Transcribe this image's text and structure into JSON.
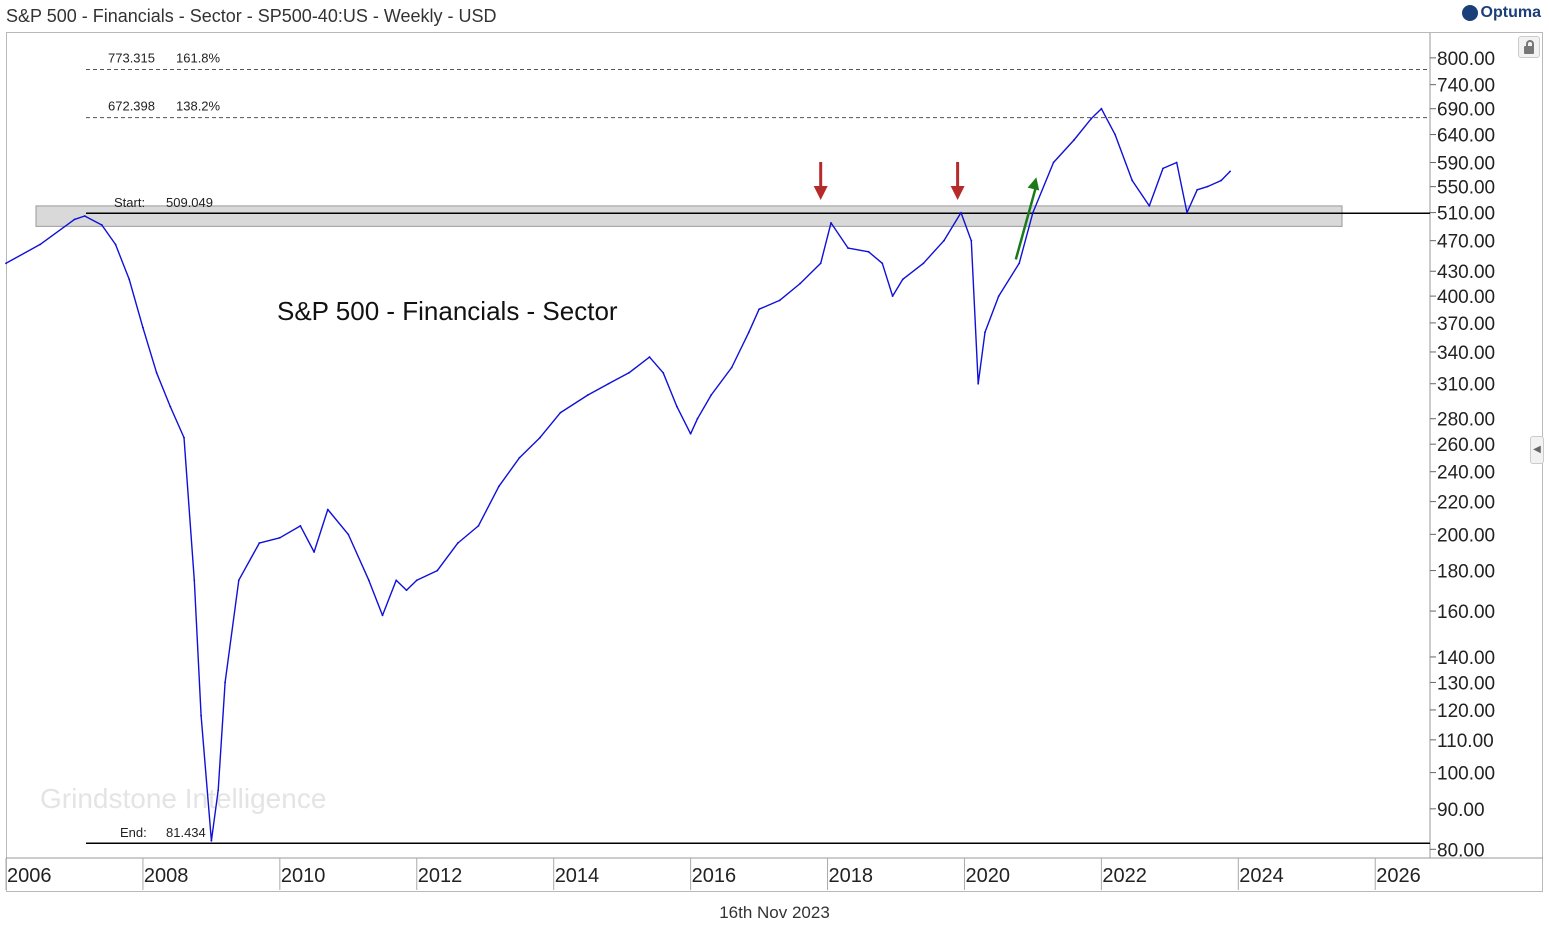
{
  "header": {
    "title": "S&P 500 - Financials - Sector - SP500-40:US - Weekly - USD",
    "brand": "Optuma"
  },
  "footer": {
    "date": "16th Nov 2023"
  },
  "watermark": "Grindstone Intelligence",
  "colors": {
    "series": "#1010d8",
    "arrow_down": "#b52b2b",
    "arrow_up": "#1a7a1a",
    "band": "#d9d9d9",
    "grid_dashed": "#555555"
  },
  "chart_data": {
    "type": "line",
    "title": "S&P 500 - Financials - Sector",
    "yscale": "log",
    "ylim": [
      78,
      860
    ],
    "xlim": [
      2006.0,
      2026.8
    ],
    "x_ticks": [
      "2006",
      "2008",
      "2010",
      "2012",
      "2014",
      "2016",
      "2018",
      "2020",
      "2022",
      "2024",
      "2026"
    ],
    "y_ticks": [
      "800.00",
      "740.00",
      "690.00",
      "640.00",
      "590.00",
      "550.00",
      "510.00",
      "470.00",
      "430.00",
      "400.00",
      "370.00",
      "340.00",
      "310.00",
      "280.00",
      "260.00",
      "240.00",
      "220.00",
      "200.00",
      "180.00",
      "160.00",
      "140.00",
      "130.00",
      "120.00",
      "110.00",
      "100.00",
      "90.00",
      "80.00"
    ],
    "series": [
      {
        "x": [
          2006.0,
          2006.5,
          2007.0,
          2007.15,
          2007.4,
          2007.6,
          2007.8,
          2008.0,
          2008.2,
          2008.4,
          2008.6,
          2008.75,
          2008.85,
          2009.0,
          2009.1,
          2009.2,
          2009.4,
          2009.7,
          2010.0,
          2010.3,
          2010.5,
          2010.7,
          2011.0,
          2011.3,
          2011.5,
          2011.7,
          2011.85,
          2012.0,
          2012.3,
          2012.6,
          2012.9,
          2013.2,
          2013.5,
          2013.8,
          2014.1,
          2014.5,
          2014.8,
          2015.1,
          2015.4,
          2015.6,
          2015.8,
          2016.0,
          2016.1,
          2016.3,
          2016.6,
          2016.85,
          2017.0,
          2017.3,
          2017.6,
          2017.9,
          2018.05,
          2018.3,
          2018.6,
          2018.8,
          2018.95,
          2019.1,
          2019.4,
          2019.7,
          2019.95,
          2020.1,
          2020.2,
          2020.3,
          2020.5,
          2020.8,
          2021.0,
          2021.3,
          2021.6,
          2021.85,
          2022.0,
          2022.2,
          2022.45,
          2022.7,
          2022.9,
          2023.1,
          2023.25,
          2023.4,
          2023.55,
          2023.75,
          2023.88
        ],
        "y": [
          440,
          465,
          500,
          505,
          492,
          465,
          420,
          365,
          320,
          290,
          265,
          175,
          118,
          82,
          95,
          130,
          175,
          195,
          198,
          205,
          190,
          215,
          200,
          175,
          158,
          175,
          170,
          175,
          180,
          195,
          205,
          230,
          250,
          265,
          285,
          300,
          310,
          320,
          335,
          320,
          290,
          268,
          280,
          300,
          325,
          360,
          385,
          395,
          415,
          440,
          495,
          460,
          455,
          440,
          400,
          420,
          440,
          470,
          510,
          470,
          310,
          360,
          400,
          440,
          510,
          590,
          630,
          670,
          690,
          640,
          560,
          520,
          580,
          590,
          510,
          545,
          550,
          560,
          575
        ]
      }
    ],
    "annotations": {
      "fib": [
        {
          "value": "773.315",
          "pct": "161.8%",
          "y": 773.315
        },
        {
          "value": "672.398",
          "pct": "138.2%",
          "y": 672.398
        }
      ],
      "start": {
        "label": "Start:",
        "value": "509.049",
        "y": 509.049
      },
      "end": {
        "label": "End:",
        "value": "81.434",
        "y": 81.434
      },
      "band": {
        "y_low": 490,
        "y_high": 520
      },
      "down_arrows_x": [
        2017.9,
        2019.9
      ],
      "up_arrow": {
        "x0": 2020.75,
        "y0": 445,
        "x1": 2021.05,
        "y1": 565
      }
    }
  }
}
